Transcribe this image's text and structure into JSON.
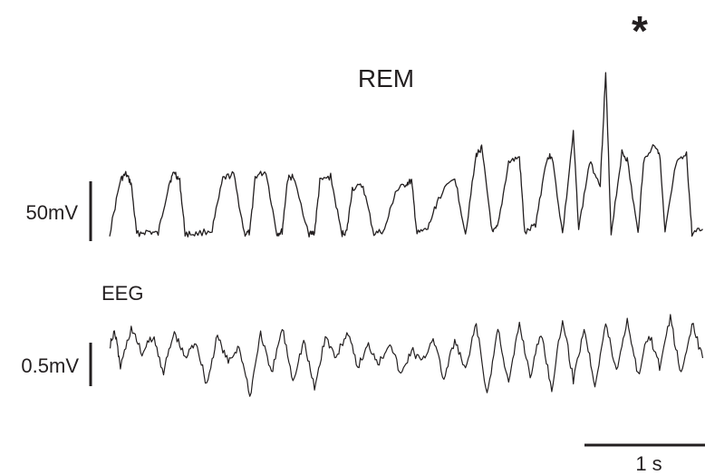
{
  "chart_data": [
    {
      "type": "line",
      "title": "REM",
      "annotation": "*",
      "scale_bar_label": "50mV",
      "scale_bar_value_mV": 50,
      "duration_s": 5.5,
      "traces": [
        {
          "t": [
            0.0,
            0.1,
            0.15,
            0.2,
            0.25,
            0.35,
            0.45,
            0.55,
            0.6,
            0.65,
            0.7,
            0.8,
            0.95,
            1.05,
            1.15,
            1.25,
            1.3,
            1.35,
            1.45,
            1.55,
            1.6,
            1.65,
            1.7,
            1.85,
            1.9,
            1.95,
            2.05,
            2.15,
            2.2,
            2.25,
            2.35,
            2.45,
            2.55,
            2.65,
            2.75,
            2.8,
            2.85,
            2.95,
            3.05,
            3.2,
            3.3,
            3.4,
            3.45,
            3.55,
            3.6,
            3.7,
            3.8,
            3.85,
            3.95,
            4.05,
            4.1,
            4.2,
            4.3,
            4.35,
            4.45,
            4.55,
            4.6,
            4.65,
            4.75,
            4.8,
            4.9,
            4.95,
            5.05,
            5.1,
            5.15,
            5.25,
            5.35,
            5.4,
            5.5
          ],
          "v": [
            0,
            45,
            50,
            42,
            0,
            2,
            0,
            42,
            52,
            44,
            0,
            0,
            3,
            46,
            50,
            0,
            1,
            48,
            52,
            0,
            2,
            46,
            48,
            0,
            1,
            44,
            48,
            0,
            2,
            38,
            40,
            0,
            3,
            35,
            42,
            44,
            0,
            4,
            30,
            48,
            0,
            66,
            72,
            0,
            6,
            60,
            64,
            0,
            8,
            62,
            66,
            0,
            84,
            4,
            60,
            42,
            135,
            0,
            68,
            62,
            0,
            60,
            75,
            68,
            0,
            58,
            66,
            0,
            4
          ]
        }
      ]
    },
    {
      "type": "line",
      "title": "EEG",
      "scale_bar_label": "0.5mV",
      "scale_bar_value_mV": 0.5,
      "duration_s": 5.5,
      "traces": [
        {
          "t": [
            0.0,
            0.05,
            0.1,
            0.2,
            0.3,
            0.4,
            0.5,
            0.6,
            0.7,
            0.8,
            0.9,
            1.0,
            1.1,
            1.2,
            1.3,
            1.4,
            1.5,
            1.6,
            1.7,
            1.8,
            1.9,
            2.0,
            2.1,
            2.2,
            2.3,
            2.4,
            2.5,
            2.6,
            2.7,
            2.8,
            2.9,
            3.0,
            3.1,
            3.2,
            3.3,
            3.4,
            3.5,
            3.6,
            3.7,
            3.8,
            3.9,
            4.0,
            4.1,
            4.2,
            4.3,
            4.4,
            4.5,
            4.6,
            4.7,
            4.8,
            4.9,
            5.0,
            5.1,
            5.2,
            5.3,
            5.4,
            5.5
          ],
          "v": [
            0.15,
            0.3,
            -0.1,
            0.35,
            0.05,
            0.25,
            -0.15,
            0.3,
            0.0,
            0.2,
            -0.3,
            0.25,
            -0.05,
            0.15,
            -0.45,
            0.3,
            -0.2,
            0.35,
            -0.25,
            0.2,
            -0.35,
            0.25,
            0.0,
            0.3,
            -0.1,
            0.15,
            -0.05,
            0.2,
            -0.2,
            0.1,
            -0.05,
            0.25,
            -0.25,
            0.2,
            -0.15,
            0.4,
            -0.45,
            0.35,
            -0.3,
            0.4,
            -0.2,
            0.3,
            -0.35,
            0.45,
            -0.25,
            0.35,
            -0.3,
            0.4,
            -0.15,
            0.45,
            -0.2,
            0.3,
            -0.1,
            0.45,
            -0.2,
            0.4,
            0.0
          ]
        }
      ]
    }
  ],
  "time_scale_bar": {
    "label": "1 s",
    "duration_s": 1
  }
}
